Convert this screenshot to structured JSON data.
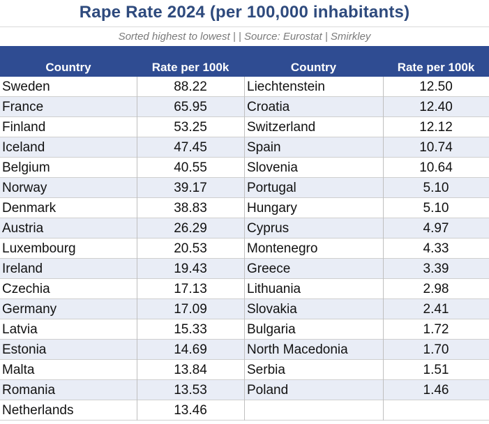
{
  "chart_data": {
    "type": "table",
    "title": "Rape Rate 2024 (per 100,000 inhabitants)",
    "subtitle": "Sorted highest to lowest | | Source: Eurostat | Smirkley",
    "columns": [
      "Country",
      "Rate per 100k",
      "Country",
      "Rate per 100k"
    ],
    "left": [
      {
        "country": "Sweden",
        "rate": "88.22"
      },
      {
        "country": "France",
        "rate": "65.95"
      },
      {
        "country": "Finland",
        "rate": "53.25"
      },
      {
        "country": "Iceland",
        "rate": "47.45"
      },
      {
        "country": "Belgium",
        "rate": "40.55"
      },
      {
        "country": "Norway",
        "rate": "39.17"
      },
      {
        "country": "Denmark",
        "rate": "38.83"
      },
      {
        "country": "Austria",
        "rate": "26.29"
      },
      {
        "country": "Luxembourg",
        "rate": "20.53"
      },
      {
        "country": "Ireland",
        "rate": "19.43"
      },
      {
        "country": "Czechia",
        "rate": "17.13"
      },
      {
        "country": "Germany",
        "rate": "17.09"
      },
      {
        "country": "Latvia",
        "rate": "15.33"
      },
      {
        "country": "Estonia",
        "rate": "14.69"
      },
      {
        "country": "Malta",
        "rate": "13.84"
      },
      {
        "country": "Romania",
        "rate": "13.53"
      },
      {
        "country": "Netherlands",
        "rate": "13.46"
      }
    ],
    "right": [
      {
        "country": "Liechtenstein",
        "rate": "12.50"
      },
      {
        "country": "Croatia",
        "rate": "12.40"
      },
      {
        "country": "Switzerland",
        "rate": "12.12"
      },
      {
        "country": "Spain",
        "rate": "10.74"
      },
      {
        "country": "Slovenia",
        "rate": "10.64"
      },
      {
        "country": "Portugal",
        "rate": "5.10"
      },
      {
        "country": "Hungary",
        "rate": "5.10"
      },
      {
        "country": "Cyprus",
        "rate": "4.97"
      },
      {
        "country": "Montenegro",
        "rate": "4.33"
      },
      {
        "country": "Greece",
        "rate": "3.39"
      },
      {
        "country": "Lithuania",
        "rate": "2.98"
      },
      {
        "country": "Slovakia",
        "rate": "2.41"
      },
      {
        "country": "Bulgaria",
        "rate": "1.72"
      },
      {
        "country": "North Macedonia",
        "rate": "1.70"
      },
      {
        "country": "Serbia",
        "rate": "1.51"
      },
      {
        "country": "Poland",
        "rate": "1.46"
      }
    ],
    "colors": {
      "title": "#2e4a7d",
      "header_bg": "#2f4c92",
      "header_text": "#ffffff",
      "alt_row": "#e9edf6"
    }
  }
}
